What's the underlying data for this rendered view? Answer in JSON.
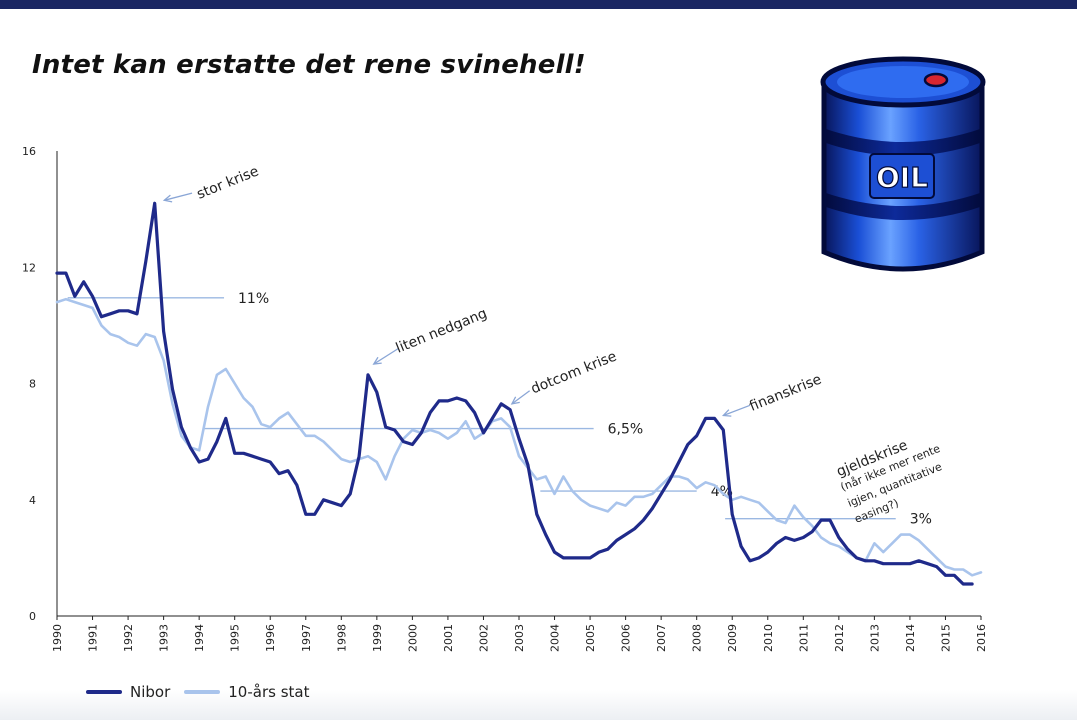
{
  "slide": {
    "title": "Intet kan erstatte det rene svinehell!"
  },
  "barrel": {
    "label": "OIL",
    "icon": "oil-barrel-icon",
    "colors": {
      "body": "#1a4fd6",
      "band": "#08155a",
      "highlight": "#7fb3ff",
      "cap": "#d7262f"
    }
  },
  "colors": {
    "nibor": "#1f2a8a",
    "stat10": "#a9c4ec",
    "reference": "#9bb8e2",
    "top_bar": "#1b2763"
  },
  "chart_data": {
    "type": "line",
    "title": "",
    "xlabel": "",
    "ylabel": "",
    "xlim": [
      1990,
      2016
    ],
    "ylim": [
      0,
      16
    ],
    "y_ticks": [
      "0",
      "4",
      "8",
      "12",
      "16"
    ],
    "x_ticks": [
      "1990",
      "1991",
      "1992",
      "1993",
      "1994",
      "1995",
      "1996",
      "1997",
      "1998",
      "1999",
      "2000",
      "2001",
      "2002",
      "2003",
      "2004",
      "2005",
      "2006",
      "2007",
      "2008",
      "2009",
      "2010",
      "2011",
      "2012",
      "2013",
      "2014",
      "2015",
      "2016"
    ],
    "grid": false,
    "legend_position": "bottom-left",
    "series": [
      {
        "name": "Nibor",
        "color": "#1f2a8a",
        "points": [
          [
            1990.0,
            11.8
          ],
          [
            1990.25,
            11.8
          ],
          [
            1990.5,
            11.0
          ],
          [
            1990.75,
            11.5
          ],
          [
            1991.0,
            11.0
          ],
          [
            1991.25,
            10.3
          ],
          [
            1991.5,
            10.4
          ],
          [
            1991.75,
            10.5
          ],
          [
            1992.0,
            10.5
          ],
          [
            1992.25,
            10.4
          ],
          [
            1992.5,
            12.2
          ],
          [
            1992.75,
            14.2
          ],
          [
            1993.0,
            9.8
          ],
          [
            1993.25,
            7.8
          ],
          [
            1993.5,
            6.5
          ],
          [
            1993.75,
            5.8
          ],
          [
            1994.0,
            5.3
          ],
          [
            1994.25,
            5.4
          ],
          [
            1994.5,
            6.0
          ],
          [
            1994.75,
            6.8
          ],
          [
            1995.0,
            5.6
          ],
          [
            1995.25,
            5.6
          ],
          [
            1995.5,
            5.5
          ],
          [
            1995.75,
            5.4
          ],
          [
            1996.0,
            5.3
          ],
          [
            1996.25,
            4.9
          ],
          [
            1996.5,
            5.0
          ],
          [
            1996.75,
            4.5
          ],
          [
            1997.0,
            3.5
          ],
          [
            1997.25,
            3.5
          ],
          [
            1997.5,
            4.0
          ],
          [
            1997.75,
            3.9
          ],
          [
            1998.0,
            3.8
          ],
          [
            1998.25,
            4.2
          ],
          [
            1998.5,
            5.5
          ],
          [
            1998.75,
            8.3
          ],
          [
            1999.0,
            7.7
          ],
          [
            1999.25,
            6.5
          ],
          [
            1999.5,
            6.4
          ],
          [
            1999.75,
            6.0
          ],
          [
            2000.0,
            5.9
          ],
          [
            2000.25,
            6.3
          ],
          [
            2000.5,
            7.0
          ],
          [
            2000.75,
            7.4
          ],
          [
            2001.0,
            7.4
          ],
          [
            2001.25,
            7.5
          ],
          [
            2001.5,
            7.4
          ],
          [
            2001.75,
            7.0
          ],
          [
            2002.0,
            6.3
          ],
          [
            2002.25,
            6.8
          ],
          [
            2002.5,
            7.3
          ],
          [
            2002.75,
            7.1
          ],
          [
            2003.0,
            6.1
          ],
          [
            2003.25,
            5.2
          ],
          [
            2003.5,
            3.5
          ],
          [
            2003.75,
            2.8
          ],
          [
            2004.0,
            2.2
          ],
          [
            2004.25,
            2.0
          ],
          [
            2004.5,
            2.0
          ],
          [
            2004.75,
            2.0
          ],
          [
            2005.0,
            2.0
          ],
          [
            2005.25,
            2.2
          ],
          [
            2005.5,
            2.3
          ],
          [
            2005.75,
            2.6
          ],
          [
            2006.0,
            2.8
          ],
          [
            2006.25,
            3.0
          ],
          [
            2006.5,
            3.3
          ],
          [
            2006.75,
            3.7
          ],
          [
            2007.0,
            4.2
          ],
          [
            2007.25,
            4.7
          ],
          [
            2007.5,
            5.3
          ],
          [
            2007.75,
            5.9
          ],
          [
            2008.0,
            6.2
          ],
          [
            2008.25,
            6.8
          ],
          [
            2008.5,
            6.8
          ],
          [
            2008.75,
            6.4
          ],
          [
            2009.0,
            3.5
          ],
          [
            2009.25,
            2.4
          ],
          [
            2009.5,
            1.9
          ],
          [
            2009.75,
            2.0
          ],
          [
            2010.0,
            2.2
          ],
          [
            2010.25,
            2.5
          ],
          [
            2010.5,
            2.7
          ],
          [
            2010.75,
            2.6
          ],
          [
            2011.0,
            2.7
          ],
          [
            2011.25,
            2.9
          ],
          [
            2011.5,
            3.3
          ],
          [
            2011.75,
            3.3
          ],
          [
            2012.0,
            2.7
          ],
          [
            2012.25,
            2.3
          ],
          [
            2012.5,
            2.0
          ],
          [
            2012.75,
            1.9
          ],
          [
            2013.0,
            1.9
          ],
          [
            2013.25,
            1.8
          ],
          [
            2013.5,
            1.8
          ],
          [
            2013.75,
            1.8
          ],
          [
            2014.0,
            1.8
          ],
          [
            2014.25,
            1.9
          ],
          [
            2014.5,
            1.8
          ],
          [
            2014.75,
            1.7
          ],
          [
            2015.0,
            1.4
          ],
          [
            2015.25,
            1.4
          ],
          [
            2015.5,
            1.1
          ],
          [
            2015.75,
            1.1
          ]
        ]
      },
      {
        "name": "10-års stat",
        "color": "#a9c4ec",
        "points": [
          [
            1990.0,
            10.8
          ],
          [
            1990.25,
            10.9
          ],
          [
            1990.5,
            10.8
          ],
          [
            1990.75,
            10.7
          ],
          [
            1991.0,
            10.6
          ],
          [
            1991.25,
            10.0
          ],
          [
            1991.5,
            9.7
          ],
          [
            1991.75,
            9.6
          ],
          [
            1992.0,
            9.4
          ],
          [
            1992.25,
            9.3
          ],
          [
            1992.5,
            9.7
          ],
          [
            1992.75,
            9.6
          ],
          [
            1993.0,
            8.8
          ],
          [
            1993.25,
            7.3
          ],
          [
            1993.5,
            6.2
          ],
          [
            1993.75,
            5.8
          ],
          [
            1994.0,
            5.7
          ],
          [
            1994.25,
            7.2
          ],
          [
            1994.5,
            8.3
          ],
          [
            1994.75,
            8.5
          ],
          [
            1995.0,
            8.0
          ],
          [
            1995.25,
            7.5
          ],
          [
            1995.5,
            7.2
          ],
          [
            1995.75,
            6.6
          ],
          [
            1996.0,
            6.5
          ],
          [
            1996.25,
            6.8
          ],
          [
            1996.5,
            7.0
          ],
          [
            1996.75,
            6.6
          ],
          [
            1997.0,
            6.2
          ],
          [
            1997.25,
            6.2
          ],
          [
            1997.5,
            6.0
          ],
          [
            1997.75,
            5.7
          ],
          [
            1998.0,
            5.4
          ],
          [
            1998.25,
            5.3
          ],
          [
            1998.5,
            5.4
          ],
          [
            1998.75,
            5.5
          ],
          [
            1999.0,
            5.3
          ],
          [
            1999.25,
            4.7
          ],
          [
            1999.5,
            5.5
          ],
          [
            1999.75,
            6.1
          ],
          [
            2000.0,
            6.4
          ],
          [
            2000.25,
            6.3
          ],
          [
            2000.5,
            6.4
          ],
          [
            2000.75,
            6.3
          ],
          [
            2001.0,
            6.1
          ],
          [
            2001.25,
            6.3
          ],
          [
            2001.5,
            6.7
          ],
          [
            2001.75,
            6.1
          ],
          [
            2002.0,
            6.3
          ],
          [
            2002.25,
            6.7
          ],
          [
            2002.5,
            6.8
          ],
          [
            2002.75,
            6.5
          ],
          [
            2003.0,
            5.5
          ],
          [
            2003.25,
            5.1
          ],
          [
            2003.5,
            4.7
          ],
          [
            2003.75,
            4.8
          ],
          [
            2004.0,
            4.2
          ],
          [
            2004.25,
            4.8
          ],
          [
            2004.5,
            4.3
          ],
          [
            2004.75,
            4.0
          ],
          [
            2005.0,
            3.8
          ],
          [
            2005.25,
            3.7
          ],
          [
            2005.5,
            3.6
          ],
          [
            2005.75,
            3.9
          ],
          [
            2006.0,
            3.8
          ],
          [
            2006.25,
            4.1
          ],
          [
            2006.5,
            4.1
          ],
          [
            2006.75,
            4.2
          ],
          [
            2007.0,
            4.5
          ],
          [
            2007.25,
            4.8
          ],
          [
            2007.5,
            4.8
          ],
          [
            2007.75,
            4.7
          ],
          [
            2008.0,
            4.4
          ],
          [
            2008.25,
            4.6
          ],
          [
            2008.5,
            4.5
          ],
          [
            2008.75,
            4.2
          ],
          [
            2009.0,
            4.0
          ],
          [
            2009.25,
            4.1
          ],
          [
            2009.5,
            4.0
          ],
          [
            2009.75,
            3.9
          ],
          [
            2010.0,
            3.6
          ],
          [
            2010.25,
            3.3
          ],
          [
            2010.5,
            3.2
          ],
          [
            2010.75,
            3.8
          ],
          [
            2011.0,
            3.4
          ],
          [
            2011.25,
            3.1
          ],
          [
            2011.5,
            2.7
          ],
          [
            2011.75,
            2.5
          ],
          [
            2012.0,
            2.4
          ],
          [
            2012.25,
            2.2
          ],
          [
            2012.5,
            2.0
          ],
          [
            2012.75,
            1.9
          ],
          [
            2013.0,
            2.5
          ],
          [
            2013.25,
            2.2
          ],
          [
            2013.5,
            2.5
          ],
          [
            2013.75,
            2.8
          ],
          [
            2014.0,
            2.8
          ],
          [
            2014.25,
            2.6
          ],
          [
            2014.5,
            2.3
          ],
          [
            2014.75,
            2.0
          ],
          [
            2015.0,
            1.7
          ],
          [
            2015.25,
            1.6
          ],
          [
            2015.5,
            1.6
          ],
          [
            2015.75,
            1.4
          ],
          [
            2016.0,
            1.5
          ]
        ]
      }
    ],
    "reference_lines": [
      {
        "label": "11%",
        "y": 10.95,
        "x_start": 1990.3,
        "x_end": 1994.7
      },
      {
        "label": "6,5%",
        "y": 6.45,
        "x_start": 1994.1,
        "x_end": 2005.1
      },
      {
        "label": "4%",
        "y": 4.3,
        "x_start": 2003.6,
        "x_end": 2008.0
      },
      {
        "label": "3%",
        "y": 3.35,
        "x_start": 2008.8,
        "x_end": 2013.6
      }
    ],
    "annotations": [
      {
        "text": "stor krise",
        "arrow_to": [
          1992.85,
          14.2
        ]
      },
      {
        "text": "liten nedgang",
        "arrow_to": [
          1998.8,
          8.6
        ]
      },
      {
        "text": "dotcom krise",
        "arrow_to": [
          2002.8,
          7.3
        ]
      },
      {
        "text": "finanskrise",
        "arrow_to": [
          2008.75,
          6.9
        ]
      },
      {
        "text": "gjeldskrise",
        "lines": [
          "(når ikke mer rente",
          "igjen, quantitative",
          "easing?)"
        ]
      }
    ]
  }
}
